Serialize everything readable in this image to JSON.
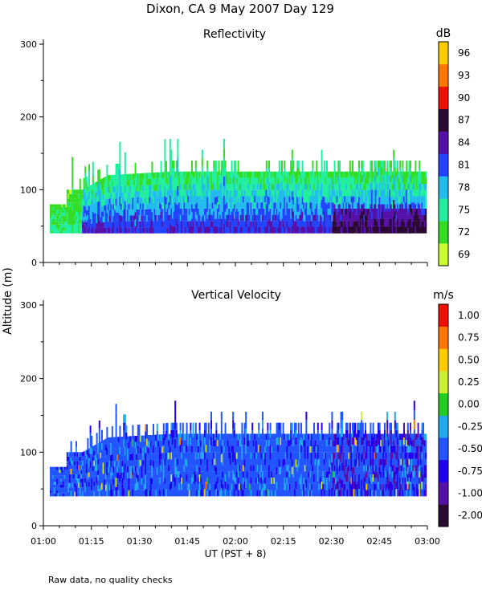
{
  "title": "Dixon, CA  9 May 2007  Day 129",
  "y_axis_label": "Altitude (m)",
  "x_axis_label": "UT  (PST + 8)",
  "footnote": "Raw data, no quality checks",
  "chart_data": [
    {
      "type": "heatmap",
      "title": "Reflectivity",
      "ylabel": "Altitude (m)",
      "xlabel": "UT  (PST + 8)",
      "xlim": [
        "01:00",
        "03:00"
      ],
      "ylim": [
        0,
        300
      ],
      "x_ticks": [
        "01:00",
        "01:15",
        "01:30",
        "01:45",
        "02:00",
        "02:15",
        "02:30",
        "02:45",
        "03:00"
      ],
      "y_ticks": [
        "0",
        "100",
        "200",
        "300"
      ],
      "colorbar_unit": "dB",
      "colorbar_labels": [
        "69",
        "72",
        "75",
        "78",
        "81",
        "84",
        "87",
        "90",
        "93",
        "96"
      ],
      "colorbar_colors": [
        "#ccff33",
        "#33dd22",
        "#22eea0",
        "#22bbee",
        "#2244ff",
        "#5511aa",
        "#2a0a33",
        "#ee1100",
        "#ff7700",
        "#ffcc00"
      ],
      "signal_bottom_m": 40,
      "top_profile": {
        "x": [
          "01:00",
          "01:07",
          "01:12",
          "01:20",
          "01:40",
          "02:00",
          "02:20",
          "02:40",
          "03:00"
        ],
        "top_m": [
          80,
          100,
          100,
          120,
          125,
          125,
          125,
          125,
          125
        ]
      }
    },
    {
      "type": "heatmap",
      "title": "Vertical Velocity",
      "ylabel": "Altitude (m)",
      "xlabel": "UT  (PST + 8)",
      "xlim": [
        "01:00",
        "03:00"
      ],
      "ylim": [
        0,
        300
      ],
      "x_ticks": [
        "01:00",
        "01:15",
        "01:30",
        "01:45",
        "02:00",
        "02:15",
        "02:30",
        "02:45",
        "03:00"
      ],
      "y_ticks": [
        "0",
        "100",
        "200",
        "300"
      ],
      "colorbar_unit": "m/s",
      "colorbar_labels": [
        "-2.00",
        "-1.00",
        "-0.75",
        "-0.50",
        "-0.25",
        "0.00",
        "0.25",
        "0.50",
        "0.75",
        "1.00"
      ],
      "colorbar_colors": [
        "#2a0a33",
        "#5511aa",
        "#2200ee",
        "#2255ff",
        "#22aaee",
        "#22cc22",
        "#ccee33",
        "#ffcc00",
        "#ff7700",
        "#ee1100"
      ],
      "signal_bottom_m": 40,
      "top_profile": {
        "x": [
          "01:00",
          "01:07",
          "01:12",
          "01:20",
          "01:40",
          "02:00",
          "02:20",
          "02:40",
          "03:00"
        ],
        "top_m": [
          80,
          100,
          100,
          120,
          125,
          125,
          125,
          125,
          125
        ]
      }
    }
  ]
}
